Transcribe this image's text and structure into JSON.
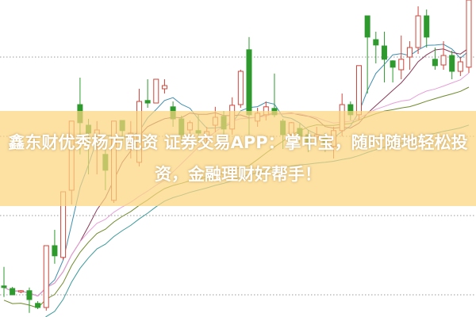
{
  "caption": "鑫东财优秀杨方配资 证券交易APP：掌中宝，随时随地轻松投资，金融理财好帮手！",
  "colors": {
    "up": "#d2443a",
    "down": "#2e9a2e",
    "ma5": "#3f8fb0",
    "ma10": "#8a3a5a",
    "ma20": "#e7a0d8",
    "ma30": "#6f8a2a",
    "ma60": "#3a9a9a",
    "banner": "#fbd680",
    "grid": "#999999"
  },
  "chart_data": {
    "type": "candlestick",
    "title": "",
    "xlabel": "",
    "ylabel": "",
    "grid": true,
    "ylim": [
      0,
      100
    ],
    "moving_averages": [
      5,
      10,
      20,
      30,
      60
    ],
    "candles": [
      [
        9.8,
        15.8,
        6.3,
        9.3
      ],
      [
        9,
        9.5,
        7,
        7
      ],
      [
        8,
        8.5,
        7.5,
        8.3
      ],
      [
        8.3,
        9.3,
        1.3,
        5.5
      ],
      [
        4.3,
        5,
        2.5,
        3
      ],
      [
        3,
        22.5,
        2,
        22.5
      ],
      [
        22.5,
        27.5,
        16.8,
        19.3
      ],
      [
        18.8,
        39.5,
        18,
        39.5
      ],
      [
        40,
        61.8,
        35.5,
        61.8
      ],
      [
        67,
        75.5,
        51.3,
        61.3
      ],
      [
        60.5,
        62.5,
        45,
        58
      ],
      [
        57,
        61.8,
        45,
        59
      ],
      [
        51.3,
        54.3,
        40,
        46.3
      ],
      [
        36.8,
        61.8,
        36,
        61.8
      ],
      [
        62,
        62,
        55,
        58.8
      ],
      [
        55,
        61.8,
        50,
        58
      ],
      [
        48.8,
        72,
        47.5,
        68
      ],
      [
        68.3,
        75,
        66,
        67.5
      ],
      [
        67.5,
        75,
        67.5,
        75
      ],
      [
        72,
        75,
        70.5,
        73
      ],
      [
        66.3,
        68,
        60,
        62.5
      ],
      [
        62.5,
        63.5,
        55,
        57.5
      ],
      [
        59,
        62,
        56,
        61.3
      ],
      [
        58.8,
        63.8,
        55,
        58
      ],
      [
        57,
        60,
        55,
        58.5
      ],
      [
        60.5,
        66.3,
        58.3,
        63
      ],
      [
        63.3,
        65,
        57,
        59.3
      ],
      [
        59.3,
        69.3,
        57.5,
        66.8
      ],
      [
        67,
        78,
        66,
        77.5
      ],
      [
        84.3,
        88.3,
        57.5,
        63.8
      ],
      [
        61.8,
        66,
        60,
        64.3
      ],
      [
        63.8,
        68,
        62,
        66.3
      ],
      [
        65.8,
        76.8,
        63,
        63.8
      ],
      [
        61.8,
        62.5,
        53,
        57.5
      ],
      [
        57.5,
        61.5,
        55,
        61.3
      ],
      [
        59.5,
        61,
        55,
        57
      ],
      [
        57.5,
        59,
        52,
        55
      ],
      [
        56.8,
        60,
        55,
        57.5
      ],
      [
        57,
        58,
        52,
        54.3
      ],
      [
        53.8,
        60,
        50,
        58.8
      ],
      [
        58.8,
        70.5,
        57,
        67
      ],
      [
        67,
        68,
        62,
        63.8
      ],
      [
        63.8,
        79,
        62,
        79.3
      ],
      [
        95,
        95,
        70.5,
        88.3
      ],
      [
        87.5,
        90,
        80,
        85.8
      ],
      [
        85.5,
        90,
        74,
        81.3
      ],
      [
        80.8,
        81,
        74,
        78.8
      ],
      [
        78,
        88.8,
        75,
        81.3
      ],
      [
        82,
        87,
        78,
        85
      ],
      [
        85,
        98,
        83,
        95
      ],
      [
        95,
        97,
        85,
        88.3
      ],
      [
        81.3,
        85,
        78,
        79.3
      ],
      [
        79.5,
        87,
        78,
        82.5
      ],
      [
        82.5,
        84,
        75,
        77.5
      ],
      [
        77.5,
        82,
        76,
        80.5
      ],
      [
        78.8,
        100,
        77,
        100
      ]
    ],
    "candle_format": [
      "open",
      "high",
      "low",
      "close"
    ]
  }
}
